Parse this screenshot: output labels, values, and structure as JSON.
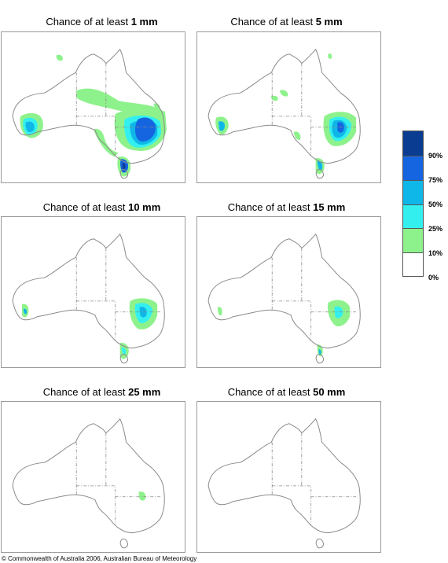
{
  "panels": [
    {
      "prefix": "Chance of at least ",
      "amount": "1 mm"
    },
    {
      "prefix": "Chance of at least ",
      "amount": "5 mm"
    },
    {
      "prefix": "Chance of at least ",
      "amount": "10 mm"
    },
    {
      "prefix": "Chance of at least ",
      "amount": "15 mm"
    },
    {
      "prefix": "Chance of at least ",
      "amount": "25 mm"
    },
    {
      "prefix": "Chance of at least ",
      "amount": "50 mm"
    }
  ],
  "legend": {
    "labels": [
      "90%",
      "75%",
      "50%",
      "25%",
      "10%",
      "0%"
    ],
    "colors": [
      "#0a3d91",
      "#1565e0",
      "#0fb6e8",
      "#33f0ef",
      "#8ef28c",
      "#ffffff"
    ]
  },
  "copyright": "© Commonwealth of Australia 2006, Australian Bureau of Meteorology"
}
